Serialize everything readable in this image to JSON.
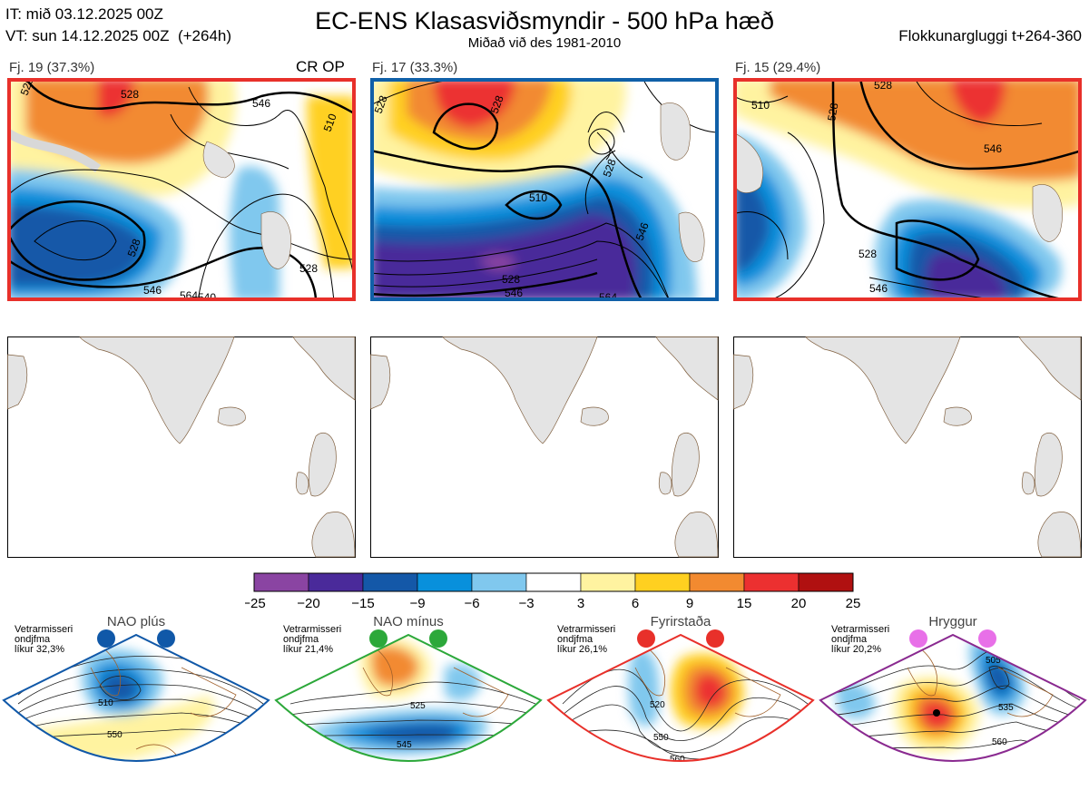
{
  "header": {
    "it_line": "IT: mið 03.12.2025 00Z",
    "vt_line": "VT: sun 14.12.2025 00Z  (+264h)",
    "title": "EC-ENS Klasasviðsmyndir - 500 hPa hæð",
    "subtitle": "Miðað við des 1981-2010",
    "window": "Flokkunargluggi t+264-360"
  },
  "clusters": [
    {
      "label": "Fj. 19 (37.3%)",
      "frame_color": "#e8302a",
      "contours": [
        "528",
        "528",
        "546",
        "510",
        "528",
        "546",
        "564",
        "540",
        "528"
      ]
    },
    {
      "label": "Fj. 17 (33.3%)",
      "frame_color": "#1060a8",
      "contours": [
        "528",
        "528",
        "528",
        "510",
        "546",
        "528",
        "546",
        "564"
      ]
    },
    {
      "label": "Fj. 15 (29.4%)",
      "frame_color": "#e8302a",
      "contours": [
        "510",
        "528",
        "528",
        "546",
        "528",
        "546"
      ]
    }
  ],
  "cr_op": "CR OP",
  "colorbar": {
    "ticks": [
      "−25",
      "−20",
      "−15",
      "−9",
      "−6",
      "−3",
      "3",
      "6",
      "9",
      "15",
      "20",
      "25"
    ],
    "colors": [
      "#8a44a2",
      "#4a2a9a",
      "#1458a8",
      "#0890dc",
      "#80c8ee",
      "#ffffff",
      "#fff3a0",
      "#ffd020",
      "#f28a30",
      "#ec3030",
      "#b01010"
    ]
  },
  "regimes": [
    {
      "title": "NAO plús",
      "color": "#1058a8",
      "dot_color": "#1058a8",
      "prob": "Vetrarmisseri\nondjfma\nlíkur 32,3%",
      "contours": [
        "510",
        "550"
      ]
    },
    {
      "title": "NAO mínus",
      "color": "#2ca83a",
      "dot_color": "#2ca83a",
      "prob": "Vetrarmisseri\nondjfma\nlíkur 21,4%",
      "contours": [
        "525",
        "545",
        "565"
      ]
    },
    {
      "title": "Fyrirstaða",
      "color": "#e8302a",
      "dot_color": "#e8302a",
      "prob": "Vetrarmisseri\nondjfma\nlíkur 26,1%",
      "contours": [
        "520",
        "550",
        "560"
      ]
    },
    {
      "title": "Hryggur",
      "color": "#8a2a90",
      "dot_color": "#e870e8",
      "prob": "Vetrarmisseri\nondjfma\nlíkur 20,2%",
      "contours": [
        "505",
        "535",
        "560"
      ]
    }
  ]
}
